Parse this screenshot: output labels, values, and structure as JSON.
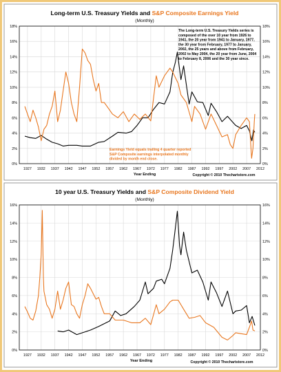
{
  "colors": {
    "border": "#f0c878",
    "panel_border": "#999999",
    "grid": "#d8d8d8",
    "treasury": "#000000",
    "earnings": "#e8761e",
    "dividend": "#e8761e"
  },
  "chart_data": [
    {
      "type": "line",
      "title_part1": "Long-term U.S. Treasury Yields and ",
      "title_part2": "S&P Composite Earnings Yield",
      "subtitle": "(Monthly)",
      "xlabel": "Year Ending",
      "ylabel": "",
      "xlim": [
        1924,
        2012
      ],
      "ylim": [
        0,
        18
      ],
      "yticks": [
        "0%",
        "2%",
        "4%",
        "6%",
        "8%",
        "10%",
        "12%",
        "14%",
        "16%",
        "18%"
      ],
      "xticks": [
        "1927",
        "1932",
        "1937",
        "1942",
        "1947",
        "1952",
        "1957",
        "1962",
        "1967",
        "1972",
        "1977",
        "1982",
        "1987",
        "1992",
        "1997",
        "2002",
        "2007",
        "2012"
      ],
      "grid": true,
      "note_top": [
        "The Long-term U.S. Treasury Yields series is",
        "composed of the over 10 year from 1926 to",
        "1941, the 20 year from 1941 to January, 1977,",
        "the 30 year from February, 1977 to January,",
        "2002, the 25 years and above from February,",
        "2002 to May 2004, the 20 year from June, 2004",
        "to February 8, 2006 and the 30 year since."
      ],
      "note_bottom": [
        "Earnings Yield equals trailing 4 quarter reported",
        "S&P Composite earnings interpolated monthly",
        "divided by month end close."
      ],
      "copyright": "Copyright © 2010 Thechartstore.com",
      "series": [
        {
          "name": "Long-term U.S. Treasury Yields",
          "color": "#000000",
          "x": [
            1926,
            1928,
            1930,
            1932,
            1934,
            1936,
            1938,
            1940,
            1942,
            1945,
            1947,
            1950,
            1953,
            1955,
            1958,
            1960,
            1963,
            1965,
            1967,
            1969,
            1971,
            1973,
            1975,
            1977,
            1979,
            1980,
            1981,
            1981.7,
            1983,
            1984,
            1986,
            1987,
            1989,
            1991,
            1993,
            1994,
            1996,
            1998,
            2000,
            2002,
            2003,
            2005,
            2007,
            2008,
            2008.9,
            2009.5,
            2010
          ],
          "y": [
            3.6,
            3.4,
            3.3,
            3.7,
            3.2,
            2.8,
            2.6,
            2.3,
            2.4,
            2.4,
            2.3,
            2.3,
            2.8,
            2.9,
            3.6,
            4.1,
            4.0,
            4.2,
            5.0,
            6.0,
            6.0,
            7.1,
            8.0,
            7.8,
            9.4,
            11.9,
            13.3,
            14.6,
            11.0,
            12.8,
            7.8,
            9.4,
            8.1,
            8.0,
            6.3,
            7.9,
            6.8,
            5.5,
            6.2,
            5.4,
            5.0,
            4.6,
            5.0,
            4.3,
            3.0,
            4.4,
            4.1
          ]
        },
        {
          "name": "S&P Composite Earnings Yield",
          "color": "#e8761e",
          "x": [
            1926,
            1927,
            1928,
            1929,
            1930,
            1931,
            1932,
            1933,
            1934,
            1935,
            1936,
            1937,
            1938,
            1939,
            1940,
            1941,
            1942,
            1943,
            1944,
            1945,
            1946,
            1947,
            1948,
            1949,
            1950,
            1951,
            1952,
            1953,
            1954,
            1955,
            1957,
            1958,
            1960,
            1962,
            1964,
            1966,
            1968,
            1970,
            1972,
            1974,
            1975,
            1977,
            1979,
            1980,
            1982,
            1983,
            1985,
            1987,
            1988,
            1990,
            1992,
            1994,
            1996,
            1998,
            2000,
            2001,
            2002,
            2003,
            2005,
            2007,
            2008,
            2008.8,
            2009.3,
            2009.8,
            2010
          ],
          "y": [
            7.5,
            6.5,
            5.5,
            7.0,
            6.0,
            4.8,
            3.0,
            4.5,
            5.0,
            6.5,
            7.5,
            9.5,
            5.5,
            7.0,
            9.5,
            12.0,
            10.5,
            8.0,
            6.5,
            5.5,
            10.0,
            15.0,
            14.5,
            13.5,
            13.0,
            11.0,
            9.5,
            10.5,
            8.0,
            8.0,
            7.0,
            6.5,
            6.0,
            6.8,
            5.5,
            6.5,
            5.8,
            6.5,
            5.6,
            11.5,
            10.0,
            11.5,
            12.5,
            12.0,
            10.5,
            9.0,
            8.0,
            5.5,
            7.5,
            6.5,
            4.5,
            6.5,
            5.0,
            3.5,
            3.8,
            2.5,
            2.0,
            3.8,
            5.0,
            6.0,
            5.5,
            0.7,
            2.0,
            5.5,
            6.5
          ]
        }
      ]
    },
    {
      "type": "line",
      "title_part1": "10 year U.S. Treasury Yields and ",
      "title_part2": "S&P Composite Dividend Yield",
      "subtitle": "(Monthly)",
      "xlabel": "Year Ending",
      "ylabel": "",
      "xlim": [
        1924,
        2012
      ],
      "ylim": [
        0,
        16
      ],
      "yticks": [
        "0%",
        "2%",
        "4%",
        "6%",
        "8%",
        "10%",
        "12%",
        "14%",
        "16%"
      ],
      "xticks": [
        "1927",
        "1932",
        "1937",
        "1942",
        "1947",
        "1952",
        "1957",
        "1962",
        "1967",
        "1972",
        "1977",
        "1982",
        "1987",
        "1992",
        "1997",
        "2002",
        "2007",
        "2012"
      ],
      "grid": true,
      "copyright": "Copyright © 2010 Thechartstore.com",
      "series": [
        {
          "name": "10 year U.S. Treasury Yields",
          "color": "#000000",
          "x": [
            1938,
            1940,
            1942,
            1945,
            1948,
            1950,
            1953,
            1955,
            1957,
            1959,
            1961,
            1963,
            1966,
            1968,
            1970,
            1971,
            1973,
            1974,
            1976,
            1977,
            1979,
            1980,
            1981,
            1981.7,
            1982.5,
            1983,
            1984,
            1985,
            1987,
            1989,
            1991,
            1993,
            1994,
            1996,
            1998,
            2000,
            2002,
            2003,
            2005,
            2007,
            2008,
            2009,
            2010
          ],
          "y": [
            2.1,
            2.0,
            2.2,
            1.7,
            2.0,
            2.2,
            2.6,
            2.9,
            3.2,
            4.3,
            3.8,
            4.0,
            4.8,
            5.5,
            7.5,
            6.2,
            6.8,
            7.6,
            7.8,
            7.3,
            9.0,
            11.0,
            13.5,
            15.3,
            11.5,
            10.5,
            13.0,
            11.0,
            8.5,
            8.8,
            7.5,
            5.5,
            7.5,
            6.3,
            4.8,
            6.5,
            4.0,
            4.3,
            4.4,
            4.9,
            3.0,
            3.7,
            2.7
          ]
        },
        {
          "name": "S&P Composite Dividend Yield",
          "color": "#e8761e",
          "x": [
            1926,
            1927,
            1928,
            1929,
            1930,
            1931,
            1931.5,
            1932,
            1932.4,
            1932.8,
            1933,
            1934,
            1935,
            1936,
            1937,
            1938,
            1939,
            1940,
            1941,
            1942,
            1943,
            1944,
            1945,
            1946,
            1947,
            1948,
            1949,
            1950,
            1951,
            1952,
            1953,
            1954,
            1955,
            1957,
            1959,
            1962,
            1965,
            1968,
            1970,
            1972,
            1974,
            1975,
            1977,
            1979,
            1980,
            1982,
            1984,
            1986,
            1988,
            1990,
            1992,
            1995,
            1998,
            2000,
            2002,
            2003,
            2005,
            2007,
            2008,
            2008.8,
            2009.3,
            2010
          ],
          "y": [
            4.8,
            4.2,
            3.5,
            3.3,
            4.3,
            6.0,
            8.0,
            10.5,
            15.4,
            8.0,
            6.5,
            5.0,
            4.5,
            3.5,
            4.5,
            6.5,
            4.5,
            5.5,
            6.8,
            7.5,
            5.0,
            4.8,
            4.0,
            3.5,
            5.0,
            6.0,
            7.3,
            6.8,
            6.2,
            5.6,
            5.8,
            4.8,
            4.0,
            4.0,
            3.3,
            3.3,
            3.0,
            3.0,
            3.5,
            2.8,
            5.0,
            4.0,
            4.5,
            5.3,
            5.5,
            5.5,
            4.5,
            3.5,
            3.6,
            3.8,
            3.0,
            2.5,
            1.4,
            1.1,
            1.6,
            1.9,
            1.8,
            1.7,
            2.5,
            3.2,
            2.2,
            2.1
          ]
        }
      ]
    }
  ]
}
